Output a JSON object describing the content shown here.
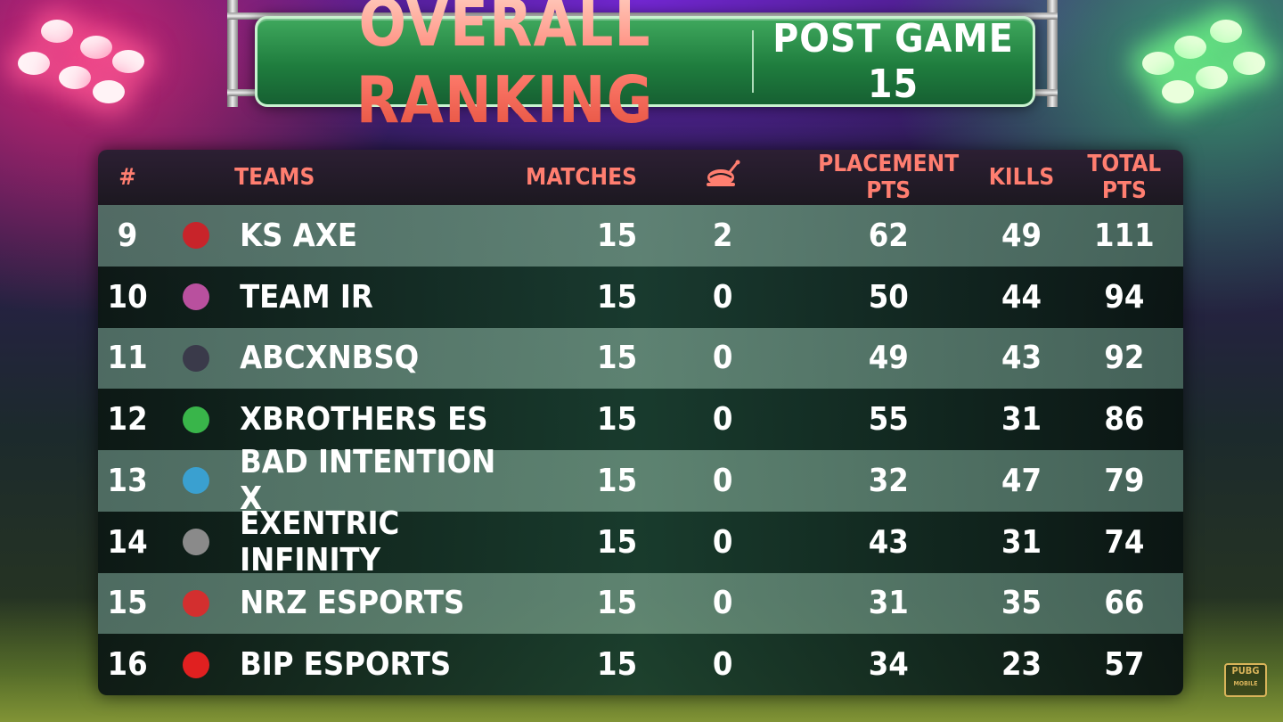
{
  "title": {
    "main": "OVERALL RANKING",
    "sub": "POST GAME 15"
  },
  "header": {
    "rank": "#",
    "teams": "TEAMS",
    "matches": "MATCHES",
    "chicken_icon": "chicken-dinner-icon",
    "placement": "PLACEMENT PTS",
    "kills": "KILLS",
    "total": "TOTAL PTS"
  },
  "rows": [
    {
      "rank": "9",
      "team": "KS AXE",
      "matches": "15",
      "chicken": "2",
      "placement": "62",
      "kills": "49",
      "total": "111",
      "logo_color": "#c8242a"
    },
    {
      "rank": "10",
      "team": "TEAM IR",
      "matches": "15",
      "chicken": "0",
      "placement": "50",
      "kills": "44",
      "total": "94",
      "logo_color": "#b9509e"
    },
    {
      "rank": "11",
      "team": "ABCXNBSQ",
      "matches": "15",
      "chicken": "0",
      "placement": "49",
      "kills": "43",
      "total": "92",
      "logo_color": "#3a3a4a"
    },
    {
      "rank": "12",
      "team": "XBROTHERS ES",
      "matches": "15",
      "chicken": "0",
      "placement": "55",
      "kills": "31",
      "total": "86",
      "logo_color": "#39b54a"
    },
    {
      "rank": "13",
      "team": "BAD INTENTION X",
      "matches": "15",
      "chicken": "0",
      "placement": "32",
      "kills": "47",
      "total": "79",
      "logo_color": "#3aa0d0"
    },
    {
      "rank": "14",
      "team": "EXENTRIC INFINITY",
      "matches": "15",
      "chicken": "0",
      "placement": "43",
      "kills": "31",
      "total": "74",
      "logo_color": "#8a8a8a"
    },
    {
      "rank": "15",
      "team": "NRZ ESPORTS",
      "matches": "15",
      "chicken": "0",
      "placement": "31",
      "kills": "35",
      "total": "66",
      "logo_color": "#d32f2f"
    },
    {
      "rank": "16",
      "team": "BIP ESPORTS",
      "matches": "15",
      "chicken": "0",
      "placement": "34",
      "kills": "23",
      "total": "57",
      "logo_color": "#e02020"
    }
  ],
  "watermark": {
    "line1": "PUBG",
    "line2": "MOBILE"
  }
}
